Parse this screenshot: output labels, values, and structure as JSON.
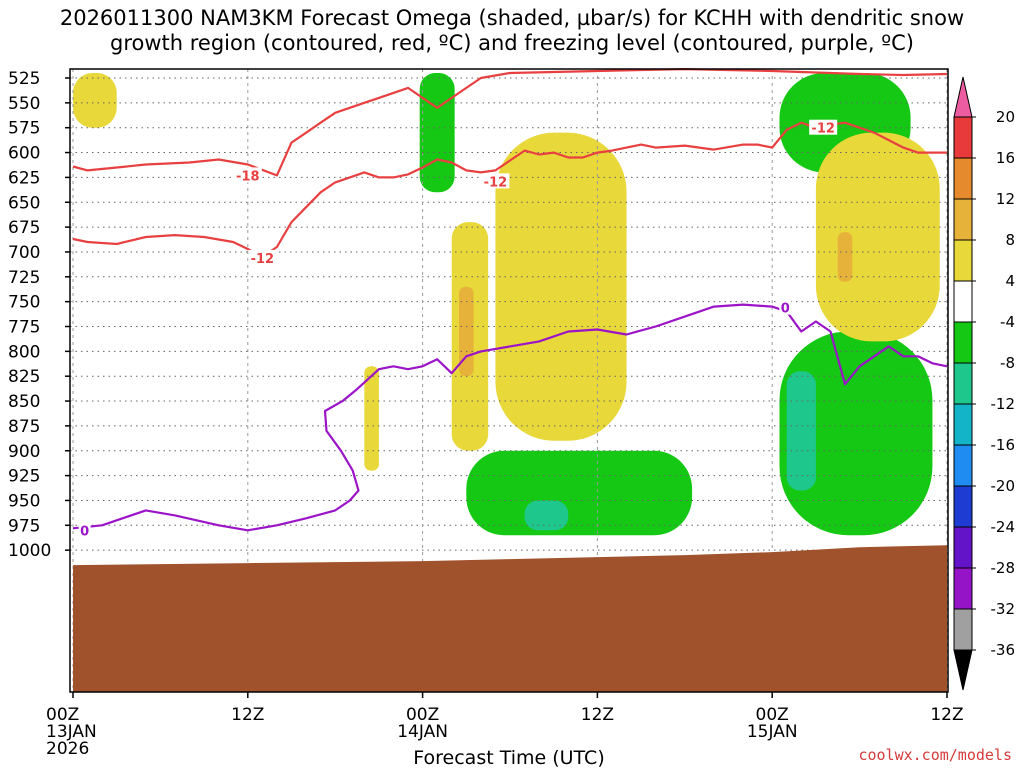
{
  "chart_data": {
    "type": "time-height cross section",
    "title_line1": "2026011300 NAM3KM Forecast Omega (shaded, µbar/s) for KCHH with dendritic snow",
    "title_line2": "growth region (contoured, red, ºC) and freezing level (contoured, purple, ºC)",
    "xlabel": "Forecast Time (UTC)",
    "credit": "coolwx.com/models",
    "x_hours_range": [
      0,
      60
    ],
    "y_levels_mb": [
      "525",
      "550",
      "575",
      "600",
      "625",
      "650",
      "675",
      "700",
      "725",
      "750",
      "775",
      "800",
      "825",
      "850",
      "875",
      "900",
      "925",
      "950",
      "975",
      "1000"
    ],
    "x_ticks": [
      {
        "hour": 0,
        "label": "00Z",
        "sub1": "13JAN",
        "sub2": "2026"
      },
      {
        "hour": 12,
        "label": "12Z",
        "sub1": "",
        "sub2": ""
      },
      {
        "hour": 24,
        "label": "00Z",
        "sub1": "14JAN",
        "sub2": ""
      },
      {
        "hour": 36,
        "label": "12Z",
        "sub1": "",
        "sub2": ""
      },
      {
        "hour": 48,
        "label": "00Z",
        "sub1": "15JAN",
        "sub2": ""
      },
      {
        "hour": 60,
        "label": "12Z",
        "sub1": "",
        "sub2": ""
      }
    ],
    "grid": true,
    "colorbar": {
      "labels": [
        "20",
        "16",
        "12",
        "8",
        "4",
        "-4",
        "-8",
        "-12",
        "-16",
        "-20",
        "-24",
        "-28",
        "-32",
        "-36"
      ],
      "colors": [
        "#ec5ca0",
        "#e83a3a",
        "#e68a2e",
        "#e6b23a",
        "#e8d83a",
        "#ffffff",
        "#14c814",
        "#1ec88c",
        "#14b4c8",
        "#1e8cf0",
        "#1e3cd2",
        "#6414c8",
        "#9614c8",
        "#a0a0a0",
        "#000000"
      ]
    },
    "colors": {
      "omega_neg_4_8": "#14c814",
      "omega_neg_8_12": "#1ec88c",
      "omega_neg_12_16": "#14b4c8",
      "omega_pos_4_8": "#e8d83a",
      "omega_pos_8_12": "#e6b23a",
      "omega_pos_12_16": "#e68a2e",
      "dgz_contour": "#e84040",
      "freezing_contour": "#9b14c8",
      "terrain": "#a0522d",
      "grid": "#888888"
    },
    "series": [
      {
        "name": "-18",
        "color": "#e84040",
        "points": [
          [
            0,
            614
          ],
          [
            1,
            618
          ],
          [
            3,
            615
          ],
          [
            5,
            612
          ],
          [
            8,
            610
          ],
          [
            10,
            607
          ],
          [
            12,
            612
          ],
          [
            14,
            623
          ],
          [
            15,
            590
          ],
          [
            16,
            580
          ],
          [
            17,
            570
          ],
          [
            18,
            560
          ],
          [
            19,
            555
          ],
          [
            20,
            550
          ],
          [
            21,
            545
          ],
          [
            22,
            540
          ],
          [
            23,
            535
          ],
          [
            24,
            545
          ],
          [
            25,
            555
          ],
          [
            26,
            545
          ],
          [
            27,
            535
          ],
          [
            28,
            525
          ],
          [
            30,
            520
          ],
          [
            36,
            518
          ],
          [
            42,
            516
          ],
          [
            48,
            518
          ],
          [
            54,
            521
          ],
          [
            57,
            522
          ],
          [
            60,
            521
          ]
        ]
      },
      {
        "name": "-12",
        "color": "#e84040",
        "points": [
          [
            0,
            687
          ],
          [
            1,
            690
          ],
          [
            3,
            692
          ],
          [
            5,
            685
          ],
          [
            7,
            683
          ],
          [
            9,
            685
          ],
          [
            11,
            690
          ],
          [
            12,
            697
          ],
          [
            13,
            705
          ],
          [
            14,
            695
          ],
          [
            15,
            670
          ],
          [
            16,
            655
          ],
          [
            17,
            640
          ],
          [
            18,
            630
          ],
          [
            19,
            625
          ],
          [
            20,
            620
          ],
          [
            21,
            625
          ],
          [
            22,
            625
          ],
          [
            23,
            622
          ],
          [
            24,
            615
          ],
          [
            25,
            607
          ],
          [
            26,
            610
          ],
          [
            27,
            618
          ],
          [
            28,
            620
          ],
          [
            29,
            618
          ],
          [
            30,
            608
          ],
          [
            31,
            598
          ],
          [
            32,
            602
          ],
          [
            33,
            600
          ],
          [
            34,
            605
          ],
          [
            35,
            605
          ],
          [
            36,
            600
          ],
          [
            37,
            598
          ],
          [
            38,
            595
          ],
          [
            39,
            592
          ],
          [
            40,
            595
          ],
          [
            42,
            593
          ],
          [
            44,
            597
          ],
          [
            46,
            592
          ],
          [
            47,
            592
          ],
          [
            48,
            595
          ],
          [
            49,
            577
          ],
          [
            50,
            570
          ],
          [
            51,
            575
          ],
          [
            52,
            572
          ],
          [
            53,
            570
          ],
          [
            55,
            580
          ],
          [
            57,
            595
          ],
          [
            58,
            600
          ],
          [
            60,
            600
          ]
        ]
      },
      {
        "name": "0",
        "color": "#9b14c8",
        "points": [
          [
            0,
            978
          ],
          [
            2,
            975
          ],
          [
            5,
            960
          ],
          [
            7,
            965
          ],
          [
            10,
            975
          ],
          [
            12,
            980
          ],
          [
            14,
            975
          ],
          [
            16,
            968
          ],
          [
            18,
            960
          ],
          [
            19,
            950
          ],
          [
            19.6,
            940
          ],
          [
            19.2,
            920
          ],
          [
            18.4,
            900
          ],
          [
            17.4,
            880
          ],
          [
            17.3,
            860
          ],
          [
            18.5,
            850
          ],
          [
            19.5,
            838
          ],
          [
            21,
            818
          ],
          [
            22,
            815
          ],
          [
            23,
            818
          ],
          [
            24,
            815
          ],
          [
            25,
            808
          ],
          [
            26,
            822
          ],
          [
            27,
            805
          ],
          [
            28,
            800
          ],
          [
            30,
            795
          ],
          [
            32,
            790
          ],
          [
            34,
            780
          ],
          [
            36,
            778
          ],
          [
            38,
            783
          ],
          [
            40,
            775
          ],
          [
            42,
            765
          ],
          [
            44,
            755
          ],
          [
            46,
            753
          ],
          [
            48,
            755
          ],
          [
            49,
            760
          ],
          [
            50,
            780
          ],
          [
            51,
            770
          ],
          [
            52,
            780
          ],
          [
            53,
            833
          ],
          [
            54,
            815
          ],
          [
            55,
            805
          ],
          [
            56,
            795
          ],
          [
            57,
            805
          ],
          [
            58,
            805
          ],
          [
            59,
            812
          ],
          [
            60,
            815
          ]
        ]
      }
    ],
    "contour_labels": [
      {
        "text": "-18",
        "hour": 12,
        "level": 623,
        "color": "#e84040"
      },
      {
        "text": "-12",
        "hour": 13,
        "level": 706,
        "color": "#e84040"
      },
      {
        "text": "-12",
        "hour": 29,
        "level": 629,
        "color": "#e84040"
      },
      {
        "text": "-12",
        "hour": 51.5,
        "level": 575,
        "color": "#e84040"
      },
      {
        "text": "0",
        "hour": 0.8,
        "level": 980,
        "color": "#9b14c8"
      },
      {
        "text": "0",
        "hour": 48.9,
        "level": 756,
        "color": "#9b14c8"
      }
    ],
    "shaded_regions": [
      {
        "category": "-4..-8 (rising)",
        "color": "#14c814",
        "hour_span": [
          23.8,
          26.2
        ],
        "level_span": [
          520,
          640
        ]
      },
      {
        "category": "-4..-8 (rising)",
        "color": "#14c814",
        "hour_span": [
          27.0,
          42.5
        ],
        "level_span": [
          900,
          985
        ]
      },
      {
        "category": "-4..-8 (rising)",
        "color": "#14c814",
        "hour_span": [
          48.5,
          57.5
        ],
        "level_span": [
          520,
          620
        ]
      },
      {
        "category": "-4..-8 (rising)",
        "color": "#14c814",
        "hour_span": [
          48.5,
          59.0
        ],
        "level_span": [
          780,
          985
        ]
      },
      {
        "category": "-8..-12 (rising)",
        "color": "#1ec88c",
        "hour_span": [
          31.0,
          34.0
        ],
        "level_span": [
          950,
          980
        ]
      },
      {
        "category": "-8..-12 (rising)",
        "color": "#1ec88c",
        "hour_span": [
          49.0,
          51.0
        ],
        "level_span": [
          820,
          940
        ]
      },
      {
        "category": "4..8 (sinking)",
        "color": "#e8d83a",
        "hour_span": [
          0.0,
          3.0
        ],
        "level_span": [
          520,
          575
        ]
      },
      {
        "category": "4..8 (sinking)",
        "color": "#e8d83a",
        "hour_span": [
          20.0,
          21.0
        ],
        "level_span": [
          815,
          920
        ]
      },
      {
        "category": "4..8 (sinking)",
        "color": "#e8d83a",
        "hour_span": [
          26.0,
          28.5
        ],
        "level_span": [
          670,
          900
        ]
      },
      {
        "category": "4..8 (sinking)",
        "color": "#e8d83a",
        "hour_span": [
          29.0,
          38.0
        ],
        "level_span": [
          580,
          890
        ]
      },
      {
        "category": "4..8 (sinking)",
        "color": "#e8d83a",
        "hour_span": [
          51.0,
          59.5
        ],
        "level_span": [
          580,
          790
        ]
      },
      {
        "category": "8..12 (sinking)",
        "color": "#e6b23a",
        "hour_span": [
          26.5,
          27.5
        ],
        "level_span": [
          735,
          825
        ]
      },
      {
        "category": "8..12 (sinking)",
        "color": "#e6b23a",
        "hour_span": [
          52.5,
          53.5
        ],
        "level_span": [
          680,
          730
        ]
      }
    ]
  }
}
